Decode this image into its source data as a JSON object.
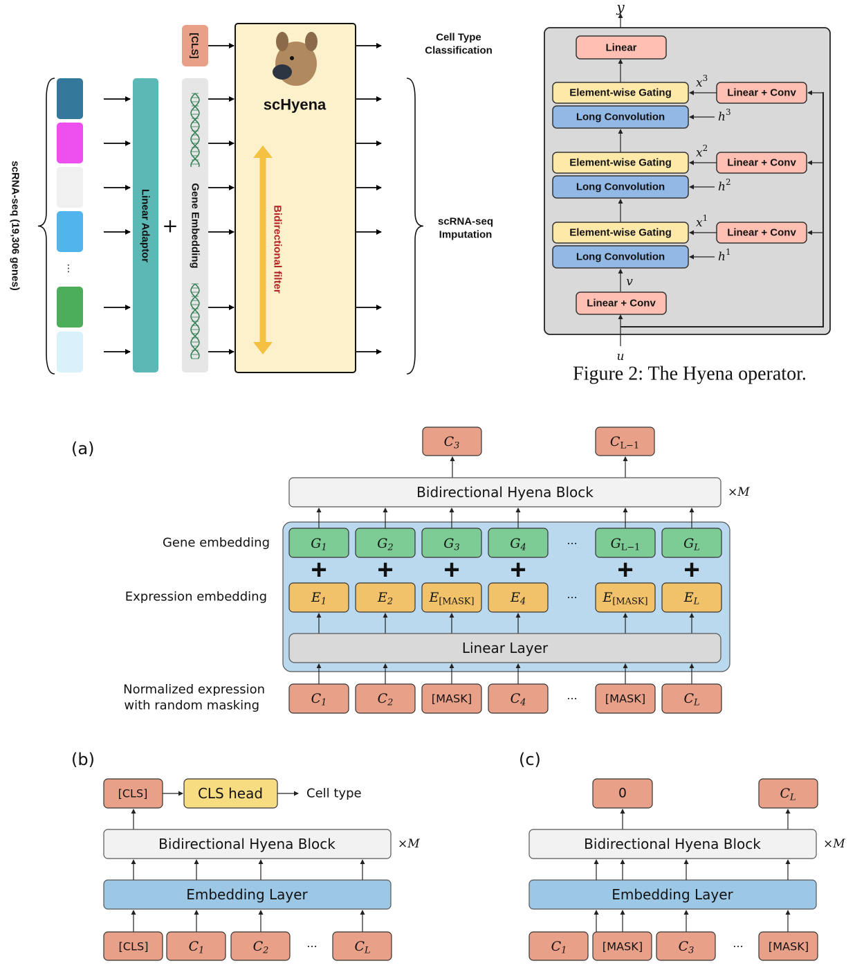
{
  "top_left": {
    "input_label": "scRNA-seq (19,306 genes)",
    "gene_colors": [
      "#34789B",
      "#EE50F0",
      "#F0F0F0",
      "#52B4EC",
      "#4CAE5B",
      "#D9F1FB"
    ],
    "ellipsis": "⋮",
    "linear_adaptor": "Linear Adaptor",
    "plus": "+",
    "gene_embedding": "Gene Embedding",
    "cls_token": "[CLS]",
    "model_name": "scHyena",
    "filter_label": "Bidirectional filter",
    "output_cls": [
      "Cell Type",
      "Classification"
    ],
    "output_imputation": [
      "scRNA-seq",
      "Imputation"
    ],
    "colors": {
      "adaptor": "#5BB8B5",
      "embedding": "#E6E6E6",
      "cls": "#E9A088",
      "model": "#FDF1CC",
      "filter_arrow": "#F4C142",
      "filter_text": "#B22222"
    }
  },
  "hyena_operator": {
    "output_var": "y",
    "input_var": "u",
    "v_var": "v",
    "linear": "Linear",
    "gating": "Element-wise Gating",
    "long_conv": "Long Convolution",
    "linear_conv": "Linear + Conv",
    "x_vars": [
      {
        "base": "x",
        "sup": "3"
      },
      {
        "base": "x",
        "sup": "2"
      },
      {
        "base": "x",
        "sup": "1"
      }
    ],
    "h_vars": [
      {
        "base": "h",
        "sup": "3"
      },
      {
        "base": "h",
        "sup": "2"
      },
      {
        "base": "h",
        "sup": "1"
      }
    ],
    "caption": "Figure 2: The Hyena operator.",
    "colors": {
      "panel": "#D9D9D9",
      "linear": "#FFBFB3",
      "gating": "#FFE9A8",
      "conv": "#92B8E6"
    }
  },
  "panel_a": {
    "label": "(a)",
    "outputs": [
      {
        "base": "C",
        "sub": "3"
      },
      {
        "base": "C",
        "sub": "L−1"
      }
    ],
    "block": "Bidirectional  Hyena  Block",
    "repeat": "×M",
    "gene_label": "Gene  embedding",
    "expr_label": "Expression  embedding",
    "input_label": [
      "Normalized  expression",
      "with  random  masking"
    ],
    "gene_tokens": [
      {
        "base": "G",
        "sub": "1"
      },
      {
        "base": "G",
        "sub": "2"
      },
      {
        "base": "G",
        "sub": "3"
      },
      {
        "base": "G",
        "sub": "4"
      },
      {
        "base": "G",
        "sub": "L−1"
      },
      {
        "base": "G",
        "sub": "L"
      }
    ],
    "expr_tokens": [
      {
        "base": "E",
        "sub": "1"
      },
      {
        "base": "E",
        "sub": "2"
      },
      {
        "base": "E",
        "sub": "[MASK]"
      },
      {
        "base": "E",
        "sub": "4"
      },
      {
        "base": "E",
        "sub": "[MASK]"
      },
      {
        "base": "E",
        "sub": "L"
      }
    ],
    "input_tokens": [
      {
        "base": "C",
        "sub": "1"
      },
      {
        "base": "C",
        "sub": "2"
      },
      {
        "plain": "[MASK]"
      },
      {
        "base": "C",
        "sub": "4"
      },
      {
        "plain": "[MASK]"
      },
      {
        "base": "C",
        "sub": "L"
      }
    ],
    "ellipsis": "···",
    "linear_layer": "Linear  Layer",
    "colors": {
      "output": "#E9A088",
      "gene": "#7DCB95",
      "expr": "#F2C26A",
      "container": "#BBD9EE",
      "linear": "#D9D9D9",
      "block": "#F2F2F2"
    }
  },
  "panel_b": {
    "label": "(b)",
    "cls_out": "[CLS]",
    "cls_head": "CLS  head",
    "cell_type": "Cell  type",
    "block": "Bidirectional  Hyena  Block",
    "repeat": "×M",
    "embedding": "Embedding  Layer",
    "inputs": [
      {
        "plain": "[CLS]"
      },
      {
        "base": "C",
        "sub": "1"
      },
      {
        "base": "C",
        "sub": "2"
      },
      {
        "base": "C",
        "sub": "L"
      }
    ],
    "ellipsis": "···",
    "colors": {
      "cls_head": "#F8DC82",
      "embedding": "#9CC8E6"
    }
  },
  "panel_c": {
    "label": "(c)",
    "outputs": [
      {
        "plain": "0"
      },
      {
        "base": "C",
        "sub": "L"
      }
    ],
    "block": "Bidirectional  Hyena  Block",
    "repeat": "×M",
    "embedding": "Embedding  Layer",
    "inputs": [
      {
        "base": "C",
        "sub": "1"
      },
      {
        "plain": "[MASK]"
      },
      {
        "base": "C",
        "sub": "3"
      },
      {
        "plain": "[MASK]"
      }
    ],
    "ellipsis": "···"
  }
}
